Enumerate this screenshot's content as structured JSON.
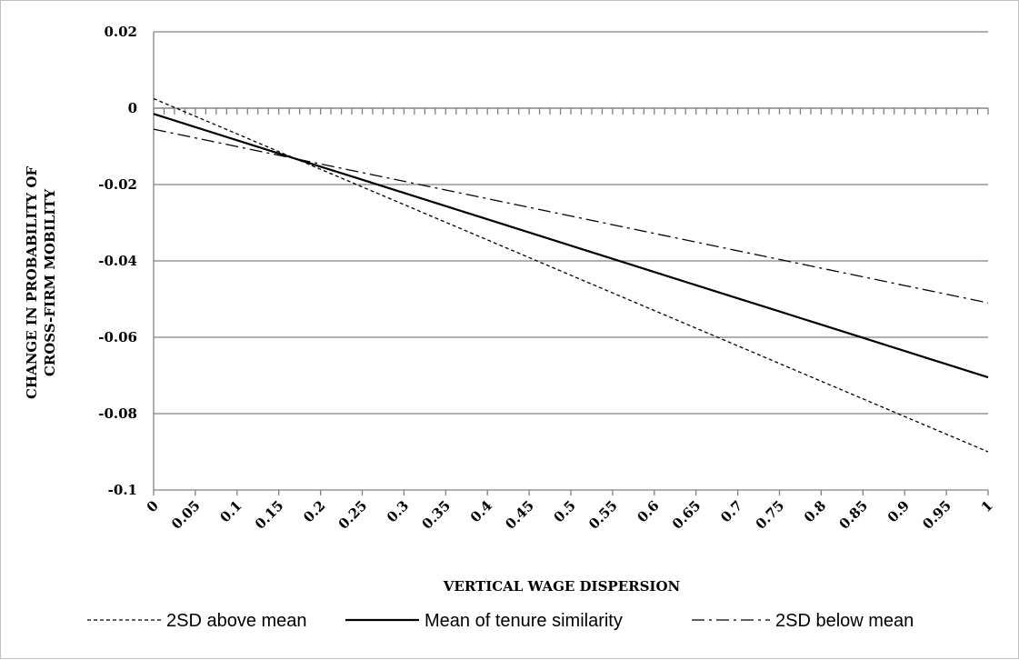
{
  "chart_data": {
    "type": "line",
    "title": "",
    "xlabel": "VERTICAL WAGE DISPERSION",
    "ylabel_lines": [
      "CHANGE IN PROBABILITY OF",
      "CROSS-FIRM MOBILITY"
    ],
    "x": [
      "0",
      "0.05",
      "0.1",
      "0.15",
      "0.2",
      "0.25",
      "0.3",
      "0.35",
      "0.4",
      "0.45",
      "0.5",
      "0.55",
      "0.6",
      "0.65",
      "0.7",
      "0.75",
      "0.8",
      "0.85",
      "0.9",
      "0.95",
      "1"
    ],
    "ylim": [
      -0.1,
      0.02
    ],
    "yticks": [
      "0.02",
      "0",
      "-0.02",
      "-0.04",
      "-0.06",
      "-0.08",
      "-0.1"
    ],
    "grid": true,
    "legend_position": "bottom",
    "series": [
      {
        "name": "2SD above mean",
        "style": "dashed",
        "start": 0.0025,
        "end": -0.09
      },
      {
        "name": "Mean of tenure similarity",
        "style": "solid",
        "start": -0.0015,
        "end": -0.0705
      },
      {
        "name": "2SD below mean",
        "style": "dash-dot",
        "start": -0.0055,
        "end": -0.051
      }
    ],
    "colors": {
      "lines": "#000000",
      "grid": "#808080",
      "axis": "#808080",
      "border": "#bfbfbf"
    }
  }
}
